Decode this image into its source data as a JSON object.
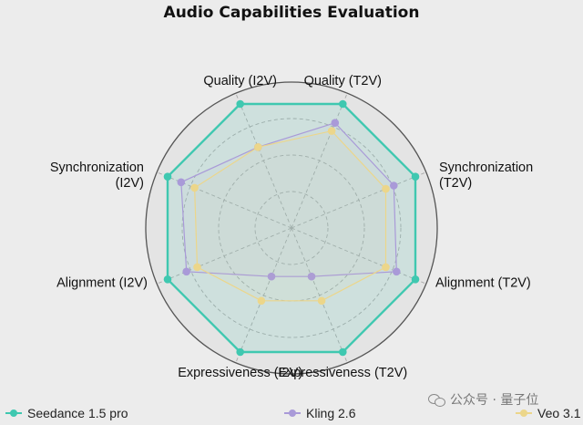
{
  "chart_data": {
    "type": "radar",
    "title": "Audio Capabilities Evaluation",
    "axes": [
      "Quality (T2V)",
      "Synchronization (T2V)",
      "Alignment (T2V)",
      "Expressiveness (T2V)",
      "Expressiveness (I2V)",
      "Alignment (I2V)",
      "Synchronization (I2V)",
      "Quality (I2V)"
    ],
    "axis_labels_display": [
      [
        "Quality (T2V)"
      ],
      [
        "Synchronization",
        "(T2V)"
      ],
      [
        "Alignment (T2V)"
      ],
      [
        "Expressiveness (T2V)"
      ],
      [
        "Expressiveness (I2V)"
      ],
      [
        "Alignment (I2V)"
      ],
      [
        "Synchronization",
        "(I2V)"
      ],
      [
        "Quality (I2V)"
      ]
    ],
    "range": [
      0,
      1
    ],
    "grid": true,
    "series": [
      {
        "name": "Seedance 1.5 pro",
        "color": "#3fc8b0",
        "values": [
          0.92,
          0.92,
          0.92,
          0.92,
          0.92,
          0.92,
          0.92,
          0.92
        ]
      },
      {
        "name": "Kling 2.6",
        "color": "#a99ad8",
        "values": [
          0.78,
          0.76,
          0.78,
          0.36,
          0.36,
          0.78,
          0.82,
          0.6
        ]
      },
      {
        "name": "Veo 3.1",
        "color": "#ecd68a",
        "values": [
          0.72,
          0.7,
          0.7,
          0.54,
          0.54,
          0.7,
          0.72,
          0.6
        ]
      }
    ],
    "legend_position": "bottom"
  },
  "watermark": {
    "text": "公众号 · 量子位",
    "icon": "wechat-icon"
  }
}
